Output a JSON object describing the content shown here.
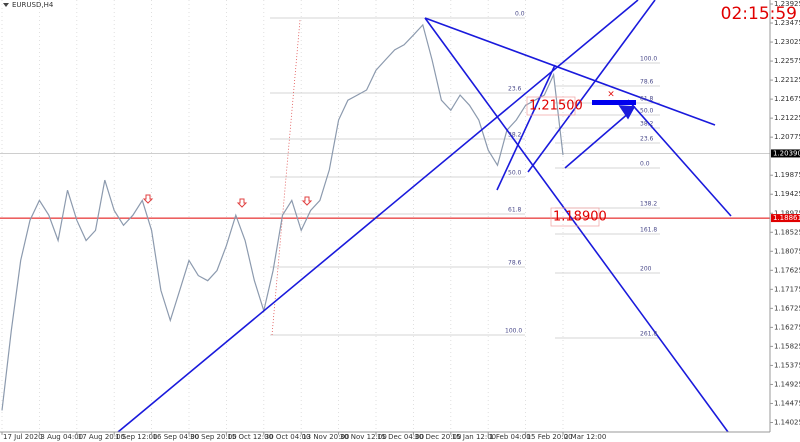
{
  "chart_data": {
    "type": "line",
    "title": "EURUSD,H4",
    "clock": "02:15:59",
    "categories": [
      "17 Jul 2020",
      null,
      null,
      null,
      "3 Aug 04:00",
      null,
      null,
      null,
      "17 Aug 20:00",
      null,
      null,
      null,
      "1 Sep 12:00",
      null,
      null,
      null,
      "16 Sep 04:00",
      null,
      null,
      null,
      "30 Sep 20:00",
      null,
      null,
      null,
      "15 Oct 12:00",
      null,
      null,
      null,
      "30 Oct 04:00",
      null,
      null,
      null,
      "13 Nov 20:00",
      null,
      null,
      null,
      "30 Nov 12:00",
      null,
      null,
      null,
      "15 Dec 04:00",
      null,
      null,
      null,
      "30 Dec 20:00",
      null,
      null,
      null,
      "15 Jan 12:00",
      null,
      null,
      null,
      "1 Feb 04:00",
      null,
      null,
      null,
      "15 Feb 20:00",
      null,
      null,
      null,
      "2 Mar 12:00"
    ],
    "series": [
      {
        "color": "#8c9aae",
        "values": [
          1.1431,
          1.162,
          1.1786,
          1.1881,
          1.1928,
          1.1893,
          1.1833,
          1.1952,
          1.1881,
          1.1833,
          1.1857,
          1.1976,
          1.1904,
          1.1869,
          1.1893,
          1.1928,
          1.1857,
          1.1715,
          1.1644,
          1.1715,
          1.1786,
          1.175,
          1.1738,
          1.1762,
          1.1821,
          1.1893,
          1.1833,
          1.1738,
          1.1667,
          1.1762,
          1.1893,
          1.1928,
          1.1857,
          1.1904,
          1.1928,
          1.2,
          1.2118,
          1.2165,
          1.2177,
          1.2189,
          1.2236,
          1.226,
          1.2284,
          1.2296,
          1.2319,
          1.2343,
          1.226,
          1.2165,
          1.2141,
          1.2177,
          1.2153,
          1.2118,
          1.2047,
          1.2011,
          1.2094,
          1.2118,
          1.2153,
          1.2165,
          1.2177,
          1.2225,
          1.2035
        ]
      }
    ],
    "ylim": [
      1.138,
      1.2402
    ],
    "yticks": [
      1.23925,
      1.23475,
      1.23025,
      1.22575,
      1.22125,
      1.21675,
      1.21225,
      1.20775,
      1.19875,
      1.19425,
      1.18975,
      1.18525,
      1.18075,
      1.17625,
      1.17175,
      1.16725,
      1.16275,
      1.15825,
      1.15375,
      1.14925,
      1.14475,
      1.14025
    ],
    "current_price": {
      "value": 1.2039,
      "label": "1.20390"
    },
    "level_line": 1.18861,
    "annotations": [
      "1.21500",
      "1.18900"
    ],
    "fib1": [
      "0.0",
      "23.6",
      "38.2",
      "50.0",
      "61.8",
      "78.6",
      "100.0"
    ],
    "fib2": [
      "100.0",
      "78.6",
      "61.8",
      "50.0",
      "38.2",
      "23.6",
      "0.0",
      "138.2",
      "161.8",
      "200",
      "261.8"
    ]
  }
}
